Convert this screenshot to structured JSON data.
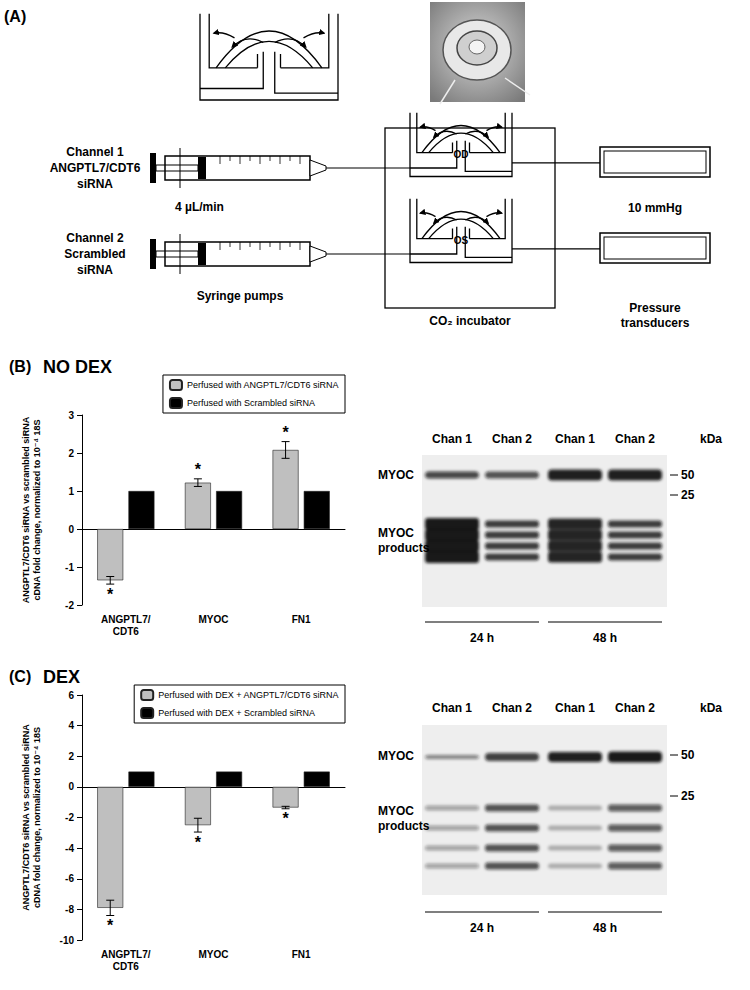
{
  "panel_a": {
    "label": "(A)",
    "channels": [
      {
        "name": "Channel 1",
        "solution": [
          "ANGPTL7/CDT6",
          "siRNA"
        ]
      },
      {
        "name": "Channel 2",
        "solution": [
          "Scrambled",
          "siRNA"
        ]
      }
    ],
    "flow_rate": "4 µL/min",
    "pumps": "Syringe pumps",
    "eyes": [
      "OD",
      "OS"
    ],
    "incubator": "CO₂ incubator",
    "pressure": "10 mmHg",
    "transducers": [
      "Pressure",
      "transducers"
    ]
  },
  "chart_data": [
    {
      "type": "bar",
      "panel": "(B)",
      "title": "NO DEX",
      "y_label": "ANGPTL7/CDT6 siRNA vs scrambled siRNA\ncDNA fold change, normalized to 10⁻⁴ 18S",
      "categories": [
        "ANGPTL7/\nCDT6",
        "MYOC",
        "FN1"
      ],
      "series": [
        {
          "name": "Perfused with ANGPTL7/CDT6 siRNA",
          "color": "#bfbfbf",
          "values": [
            -1.35,
            1.22,
            2.08
          ],
          "errors": [
            0.1,
            0.1,
            0.22
          ],
          "significance": [
            "*",
            "*",
            "*"
          ]
        },
        {
          "name": "Perfused with Scrambled siRNA",
          "color": "#000000",
          "values": [
            1,
            1,
            1
          ]
        }
      ],
      "ylim": [
        -2,
        3
      ],
      "yticks": [
        -2,
        -1,
        0,
        1,
        2,
        3
      ],
      "grid": false,
      "legend": "top-right"
    },
    {
      "type": "bar",
      "panel": "(C)",
      "title": "DEX",
      "y_label": "ANGPTL7/CDT6 siRNA vs scrambled siRNA\ncDNA fold change, normalized to 10⁻⁴ 18S",
      "categories": [
        "ANGPTL7/\nCDT6",
        "MYOC",
        "FN1"
      ],
      "series": [
        {
          "name": "Perfused with DEX + ANGPTL7/CDT6 siRNA",
          "color": "#bfbfbf",
          "values": [
            -7.9,
            -2.5,
            -1.35
          ],
          "errors": [
            0.5,
            0.45,
            0.08
          ],
          "significance": [
            "*",
            "*",
            "*"
          ]
        },
        {
          "name": "Perfused with DEX + Scrambled siRNA",
          "color": "#000000",
          "values": [
            1,
            1,
            1
          ]
        }
      ],
      "ylim": [
        -10,
        6
      ],
      "yticks": [
        -10,
        -8,
        -6,
        -4,
        -2,
        0,
        2,
        4,
        6
      ],
      "grid": false,
      "legend": "top-right"
    }
  ],
  "blots": [
    {
      "panel": "(B)",
      "lanes": [
        "Chan 1",
        "Chan 2",
        "Chan 1",
        "Chan 2"
      ],
      "unit": "kDa",
      "bands": [
        [
          "MYOC"
        ],
        [
          "MYOC",
          "products"
        ]
      ],
      "markers": [
        50,
        25
      ],
      "times": [
        "24 h",
        "48 h"
      ]
    },
    {
      "panel": "(C)",
      "lanes": [
        "Chan 1",
        "Chan 2",
        "Chan 1",
        "Chan 2"
      ],
      "unit": "kDa",
      "bands": [
        [
          "MYOC"
        ],
        [
          "MYOC",
          "products"
        ]
      ],
      "markers": [
        50,
        25
      ],
      "times": [
        "24 h",
        "48 h"
      ]
    }
  ]
}
